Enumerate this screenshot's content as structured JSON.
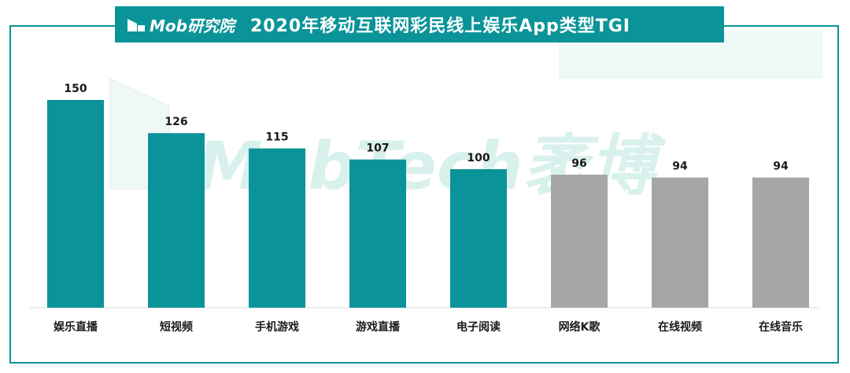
{
  "header": {
    "brand": "Mob研究院",
    "title": "2020年移动互联网彩民线上娱乐App类型TGI"
  },
  "watermark": {
    "text": "MobTech袤博"
  },
  "colors": {
    "accent": "#0a9499",
    "bar_highlight": "#0a9499",
    "bar_other": "#a6a6a6",
    "watermark": "#d9f1ec"
  },
  "chart_data": {
    "type": "bar",
    "title": "2020年移动互联网彩民线上娱乐App类型TGI",
    "xlabel": "",
    "ylabel": "",
    "categories": [
      "娱乐直播",
      "短视频",
      "手机游戏",
      "游戏直播",
      "电子阅读",
      "网络K歌",
      "在线视频",
      "在线音乐"
    ],
    "values": [
      150,
      126,
      115,
      107,
      100,
      96,
      94,
      94
    ],
    "highlight": [
      true,
      true,
      true,
      true,
      true,
      false,
      false,
      false
    ],
    "ylim": [
      0,
      160
    ],
    "grid": false,
    "legend": "none",
    "data_labels": true
  }
}
